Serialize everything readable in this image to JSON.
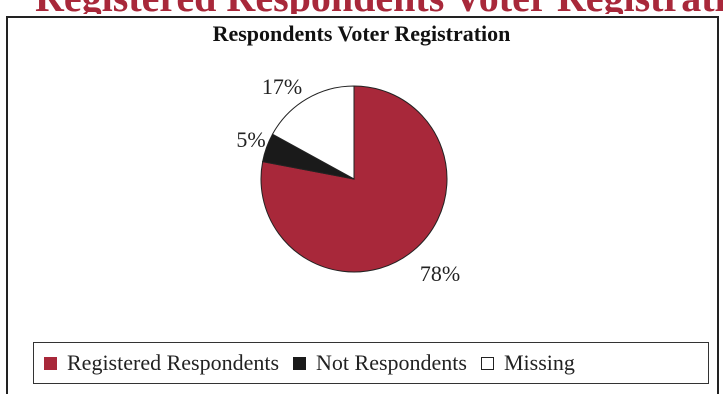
{
  "banner_text": "Registered Respondents Voter Registration",
  "chart_data": {
    "type": "pie",
    "title": "Respondents Voter Registration",
    "slices": [
      {
        "name": "Registered Respondents",
        "value": 78,
        "label": "78%",
        "color": "#a8283a"
      },
      {
        "name": "Not Respondents",
        "value": 5,
        "label": "5%",
        "color": "#1a1a1a"
      },
      {
        "name": "Missing",
        "value": 17,
        "label": "17%",
        "color": "#ffffff"
      }
    ],
    "legend_position": "bottom"
  }
}
